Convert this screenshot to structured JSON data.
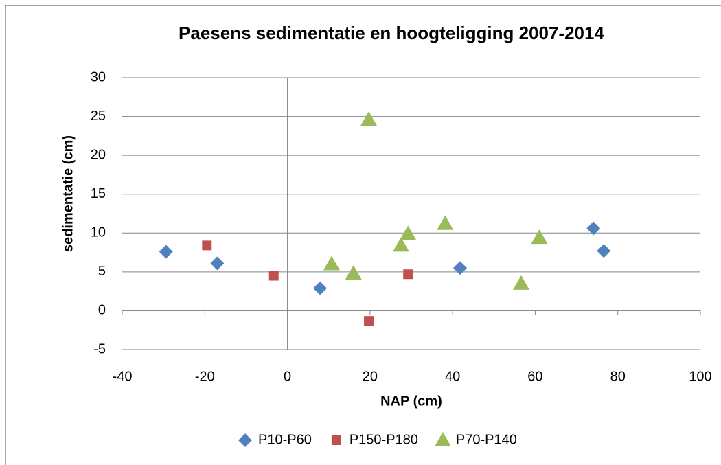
{
  "chart_data": {
    "type": "scatter",
    "title": "Paesens sedimentatie en hoogteligging 2007-2014",
    "x_label": "NAP (cm)",
    "y_label": "sedimentatie (cm)",
    "xlim": [
      -40,
      100
    ],
    "xticks": [
      -40,
      -20,
      0,
      20,
      40,
      60,
      80,
      100
    ],
    "ylim": [
      -5,
      30
    ],
    "yticks": [
      -5,
      0,
      5,
      10,
      15,
      20,
      25,
      30
    ],
    "grid": true,
    "legend": "bottom",
    "series": [
      {
        "name": "P10-P60",
        "color": "#4f81bd",
        "marker": "diamond",
        "x": [
          -29.4,
          -17.0,
          7.9,
          41.8,
          74.1,
          76.6
        ],
        "values": [
          7.6,
          6.1,
          2.9,
          5.5,
          10.6,
          7.7
        ]
      },
      {
        "name": "P150-P180",
        "color": "#c0504d",
        "marker": "square",
        "x": [
          -19.5,
          -3.3,
          19.7,
          29.2
        ],
        "values": [
          8.4,
          4.5,
          -1.3,
          4.7
        ]
      },
      {
        "name": "P70-P140",
        "color": "#9bbb59",
        "marker": "triangle",
        "x": [
          19.7,
          10.7,
          16.0,
          27.5,
          29.2,
          38.2,
          61.0,
          56.6
        ],
        "values": [
          24.6,
          6.0,
          4.8,
          8.4,
          9.9,
          11.2,
          9.4,
          3.5
        ]
      }
    ]
  }
}
